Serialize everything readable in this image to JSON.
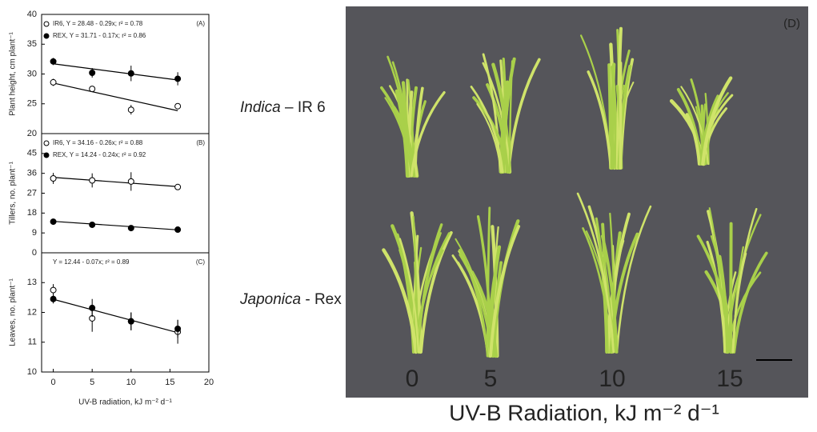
{
  "chart_data": [
    {
      "type": "scatter",
      "panel_label": "(A)",
      "ylabel": "Plant height, cm plant⁻¹",
      "xlim": [
        -1.5,
        20
      ],
      "ylim": [
        20,
        40
      ],
      "yticks": [
        20,
        25,
        30,
        35,
        40
      ],
      "series": [
        {
          "name": "IR6, Y = 28.48 - 0.29x; r² = 0.78",
          "marker": "open",
          "x": [
            0,
            5,
            10,
            16
          ],
          "values": [
            28.6,
            27.5,
            24.0,
            24.6
          ],
          "errors": [
            0.6,
            0.3,
            0.8,
            0.4
          ],
          "fit": {
            "intercept": 28.48,
            "slope": -0.29
          }
        },
        {
          "name": "REX, Y = 31.71 - 0.17x; r² = 0.86",
          "marker": "filled",
          "x": [
            0,
            5,
            10,
            16
          ],
          "values": [
            32.1,
            30.2,
            30.1,
            29.2
          ],
          "errors": [
            0.6,
            0.8,
            1.3,
            1.1
          ],
          "fit": {
            "intercept": 31.71,
            "slope": -0.17
          }
        }
      ]
    },
    {
      "type": "scatter",
      "panel_label": "(B)",
      "ylabel": "Tillers, no. plant⁻¹",
      "xlim": [
        -1.5,
        20
      ],
      "ylim": [
        0,
        54
      ],
      "yticks": [
        0,
        9,
        18,
        27,
        36,
        45
      ],
      "series": [
        {
          "name": "IR6, Y = 34.16 - 0.26x; r² = 0.88",
          "marker": "open",
          "x": [
            0,
            5,
            10,
            16
          ],
          "values": [
            33.7,
            32.8,
            32.3,
            29.8
          ],
          "errors": [
            2.5,
            3.2,
            4.2,
            1.0
          ],
          "fit": {
            "intercept": 34.16,
            "slope": -0.26
          }
        },
        {
          "name": "REX, Y = 14.24 - 0.24x; r² = 0.92",
          "marker": "filled",
          "x": [
            0,
            5,
            10,
            16
          ],
          "values": [
            14.1,
            12.7,
            11.2,
            10.5
          ],
          "errors": [
            1.0,
            1.3,
            0.8,
            0.5
          ],
          "fit": {
            "intercept": 14.24,
            "slope": -0.24
          }
        }
      ]
    },
    {
      "type": "scatter",
      "panel_label": "(C)",
      "ylabel": "Leaves, no. plant⁻¹",
      "xlabel": "UV-B radiation, kJ m⁻² d⁻¹",
      "annotation": "Y = 12.44 - 0.07x; r² = 0.89",
      "fit": {
        "intercept": 12.44,
        "slope": -0.07
      },
      "xlim": [
        -1.5,
        20
      ],
      "xticks": [
        0,
        5,
        10,
        15,
        20
      ],
      "ylim": [
        10,
        14
      ],
      "yticks": [
        10,
        11,
        12,
        13
      ],
      "series": [
        {
          "marker": "open",
          "x": [
            0,
            5,
            10,
            16
          ],
          "values": [
            12.75,
            11.8,
            11.7,
            11.35
          ],
          "errors": [
            0.2,
            0.45,
            0.3,
            0.4
          ]
        },
        {
          "marker": "filled",
          "x": [
            0,
            5,
            10,
            16
          ],
          "values": [
            12.45,
            12.15,
            11.7,
            11.45
          ],
          "errors": [
            0.15,
            0.3,
            0.3,
            0.3
          ]
        }
      ]
    }
  ],
  "photo": {
    "panel_label": "(D)",
    "rows": [
      [
        "Indica",
        " – IR 6"
      ],
      [
        "Japonica",
        " - Rex"
      ]
    ],
    "doses": [
      "0",
      "5",
      "10",
      "15"
    ],
    "xlabel": "UV-B Radiation, kJ m⁻² d⁻¹"
  }
}
